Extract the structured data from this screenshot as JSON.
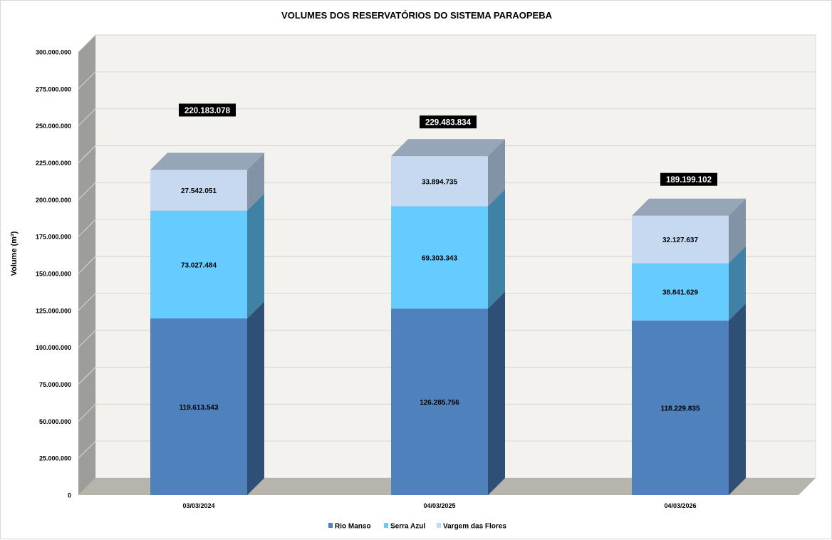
{
  "chart_data": {
    "type": "bar",
    "stacked": true,
    "three_d": true,
    "title": "VOLUMES DOS RESERVATÓRIOS DO SISTEMA PARAOPEBA",
    "xlabel": "",
    "ylabel": "Volume (m³)",
    "ylim": [
      0,
      300000000
    ],
    "ytick_step": 25000000,
    "grid": true,
    "legend_position": "bottom",
    "categories": [
      "03/03/2024",
      "04/03/2025",
      "04/03/2026"
    ],
    "series": [
      {
        "name": "Rio Manso",
        "color": "#4f81bd",
        "values": [
          119613543,
          126285756,
          118229835
        ],
        "labels": [
          "119.613.543",
          "126.285.756",
          "118.229.835"
        ]
      },
      {
        "name": "Serra Azul",
        "color": "#66ccff",
        "values": [
          73027484,
          69303343,
          38841629
        ],
        "labels": [
          "73.027.484",
          "69.303.343",
          "38.841.629"
        ]
      },
      {
        "name": "Vargem das Flores",
        "color": "#c6d9f1",
        "values": [
          27542051,
          33894735,
          32127637
        ],
        "labels": [
          "27.542.051",
          "33.894.735",
          "32.127.637"
        ]
      }
    ],
    "totals": [
      220183078,
      229483834,
      189199102
    ],
    "total_labels": [
      "220.183.078",
      "229.483.834",
      "189.199.102"
    ],
    "ytick_labels": [
      "0",
      "25.000.000",
      "50.000.000",
      "75.000.000",
      "100.000.000",
      "125.000.000",
      "150.000.000",
      "175.000.000",
      "200.000.000",
      "225.000.000",
      "250.000.000",
      "275.000.000",
      "300.000.000"
    ]
  }
}
